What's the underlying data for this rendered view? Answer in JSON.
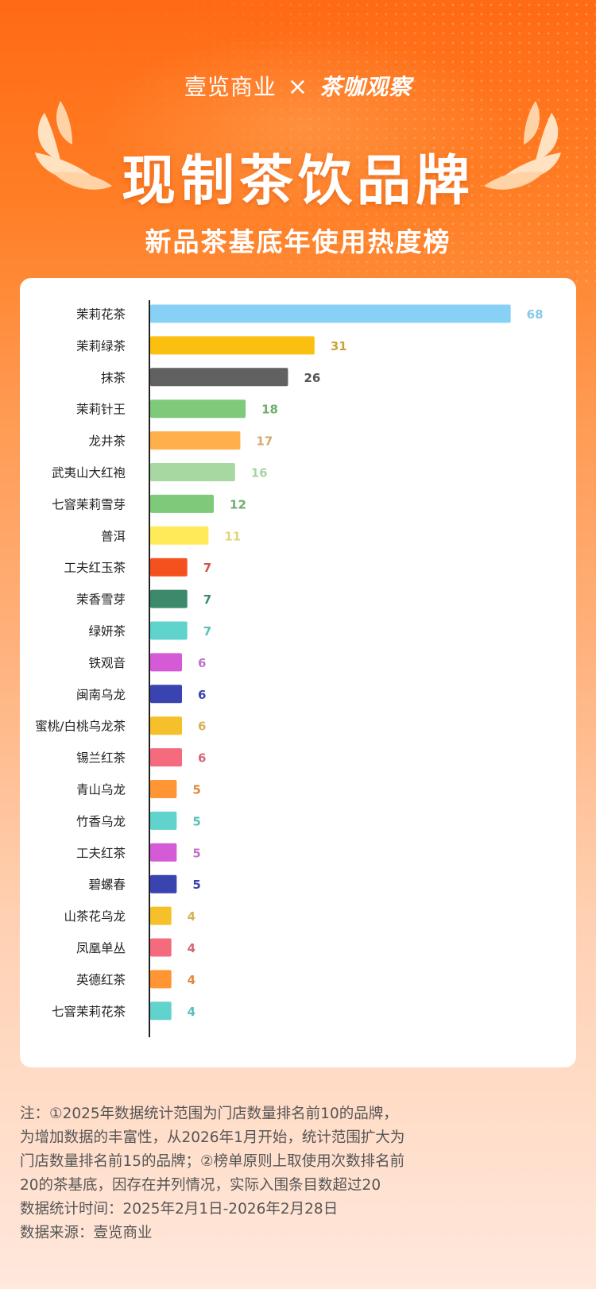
{
  "header": {
    "brand_left": "壹览商业",
    "brand_x": "×",
    "brand_right": "茶咖观察",
    "title": "现制茶饮品牌",
    "subtitle": "新品茶基底年使用热度榜"
  },
  "colors": {
    "background_top": "#ff6a14",
    "background_bottom": "#ffe8dc",
    "card": "#ffffff",
    "axis": "#222222"
  },
  "icons": {
    "laurel_left": "laurel-branch-icon",
    "laurel_right": "laurel-branch-icon"
  },
  "chart_data": {
    "type": "bar",
    "orientation": "horizontal",
    "grid": false,
    "legend": "none",
    "xlim": [
      0,
      70
    ],
    "categories": [
      "茉莉花茶",
      "茉莉绿茶",
      "抹茶",
      "茉莉针王",
      "龙井茶",
      "武夷山大红袍",
      "七窨茉莉雪芽",
      "普洱",
      "工夫红玉茶",
      "茉香雪芽",
      "绿妍茶",
      "铁观音",
      "闽南乌龙",
      "蜜桃/白桃乌龙茶",
      "锡兰红茶",
      "青山乌龙",
      "竹香乌龙",
      "工夫红茶",
      "碧螺春",
      "山茶花乌龙",
      "凤凰单丛",
      "英德红茶",
      "七窨茉莉花茶"
    ],
    "values": [
      68,
      31,
      26,
      18,
      17,
      16,
      12,
      11,
      7,
      7,
      7,
      6,
      6,
      6,
      6,
      5,
      5,
      5,
      5,
      4,
      4,
      4,
      4
    ],
    "bar_colors": [
      "#87d1f6",
      "#fbbf10",
      "#616161",
      "#7ec97a",
      "#ffb04d",
      "#a8d8a2",
      "#7ec97a",
      "#ffeb5a",
      "#f4511e",
      "#3c8a6b",
      "#5fd3cc",
      "#d45ad6",
      "#3a44b0",
      "#f6c02a",
      "#f56b7e",
      "#ff9533",
      "#5fd3cc",
      "#d45ad6",
      "#3a44b0",
      "#f6c02a",
      "#f56b7e",
      "#ff9533",
      "#5fd3cc"
    ],
    "label_colors": [
      "#87c8ea",
      "#c9a43c",
      "#555555",
      "#6fae6b",
      "#d9a870",
      "#a8d3a2",
      "#6fae6b",
      "#e2d67a",
      "#d0544a",
      "#3c8a6b",
      "#5bbfb8",
      "#c272c4",
      "#3a44b0",
      "#d6b355",
      "#d4677a",
      "#e0883f",
      "#5bbfb8",
      "#c272c4",
      "#3a44b0",
      "#d6b355",
      "#d4677a",
      "#e0883f",
      "#5bbfb8"
    ]
  },
  "notes": [
    "注：①2025年数据统计范围为门店数量排名前10的品牌，",
    "为增加数据的丰富性，从2026年1月开始，统计范围扩大为",
    "门店数量排名前15的品牌；②榜单原则上取使用次数排名前",
    "20的茶基底，因存在并列情况，实际入围条目数超过20",
    "数据统计时间：2025年2月1日-2026年2月28日",
    "数据来源：壹览商业"
  ]
}
